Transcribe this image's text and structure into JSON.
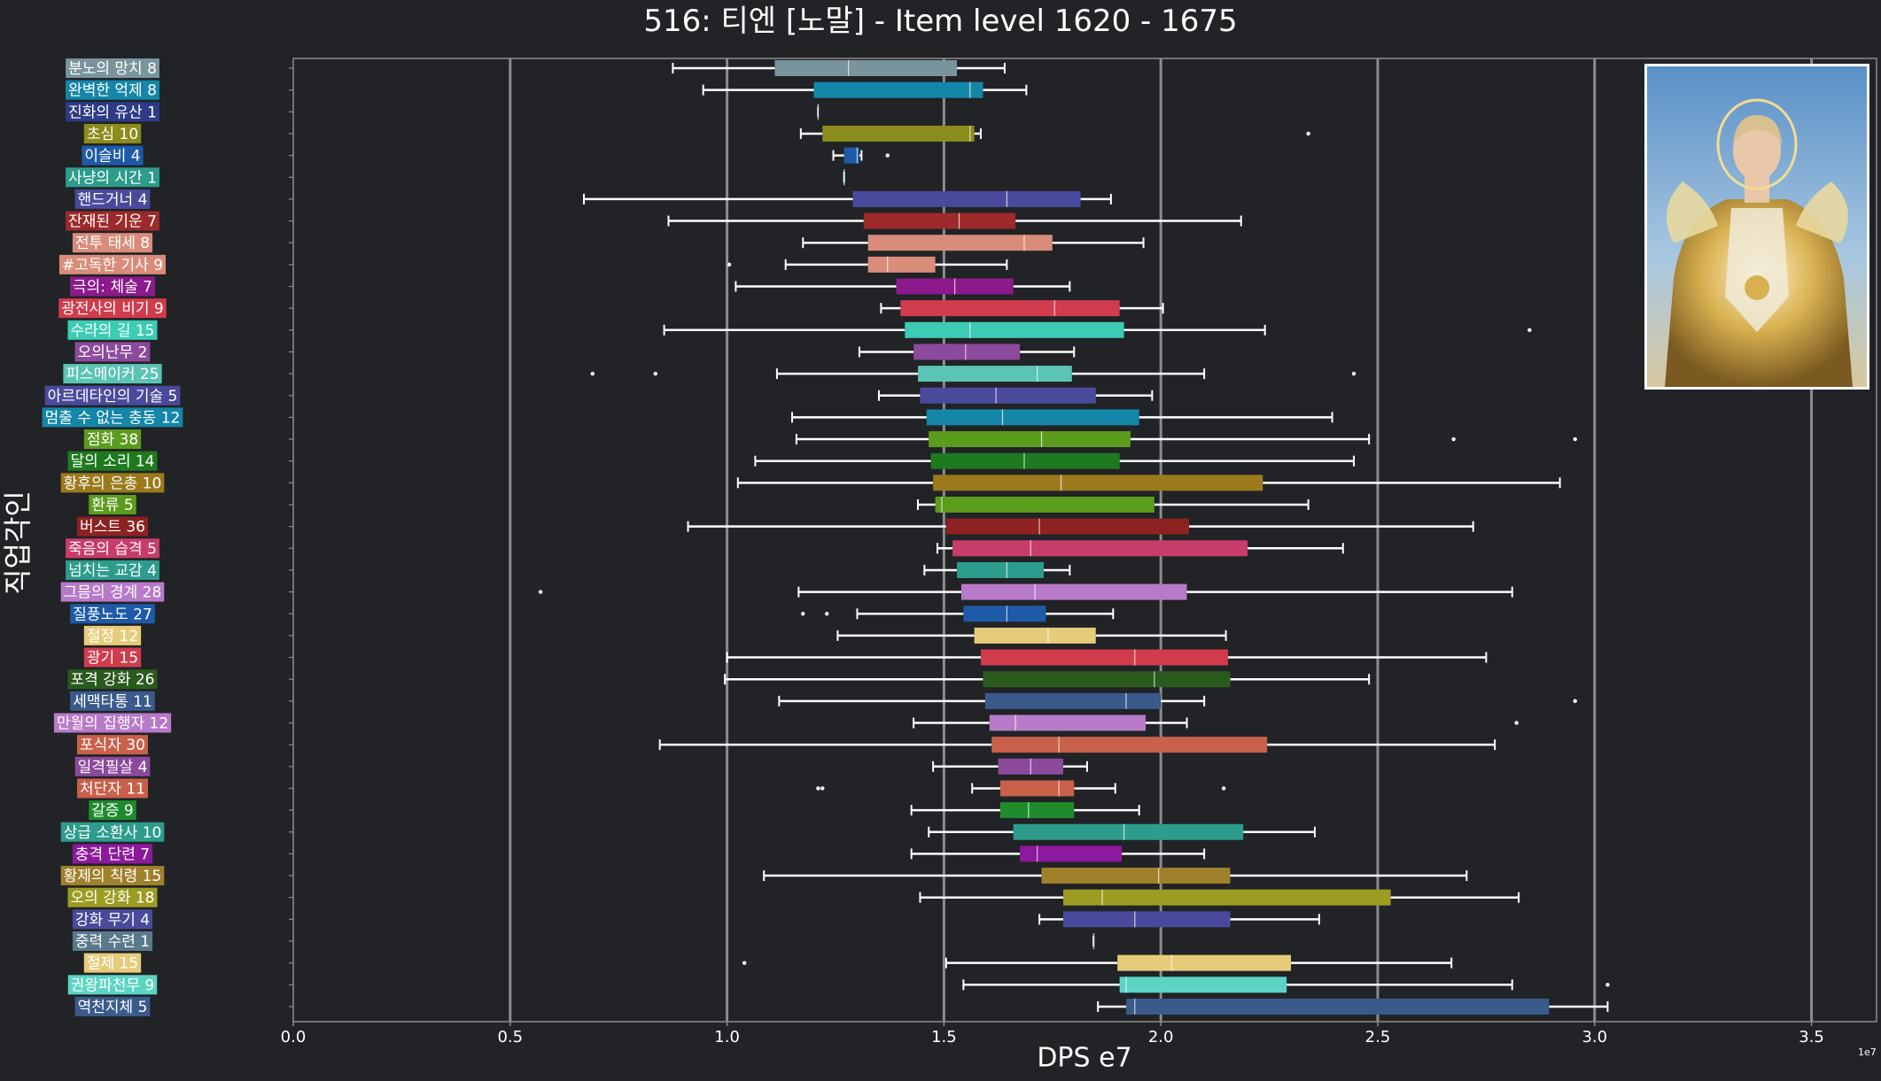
{
  "chart_data": {
    "type": "box",
    "title": "516: 티엔 [노말] - Item level 1620 - 1675",
    "xlabel": "DPS e7",
    "ylabel": "직업각인",
    "x_exponent_label": "1e7",
    "xlim": [
      0.0,
      3.65
    ],
    "xticks": [
      0.0,
      0.5,
      1.0,
      1.5,
      2.0,
      2.5,
      3.0,
      3.5
    ],
    "xtick_labels": [
      "0.0",
      "0.5",
      "1.0",
      "1.5",
      "2.0",
      "2.5",
      "3.0",
      "3.5"
    ],
    "grid": "vertical",
    "categories": [
      {
        "label": "분노의 망치 8",
        "color": "#7a949c",
        "whislo": 0.875,
        "q1": 1.11,
        "med": 1.28,
        "q3": 1.53,
        "whishi": 1.64,
        "fliers": []
      },
      {
        "label": "완벽한 억제 8",
        "color": "#1486a8",
        "whislo": 0.945,
        "q1": 1.2,
        "med": 1.56,
        "q3": 1.59,
        "whishi": 1.69,
        "fliers": []
      },
      {
        "label": "진화의 유산 1",
        "color": "#2e3b86",
        "whislo": 1.21,
        "q1": 1.21,
        "med": 1.21,
        "q3": 1.21,
        "whishi": 1.21,
        "fliers": []
      },
      {
        "label": "초심 10",
        "color": "#8c8c1c",
        "whislo": 1.17,
        "q1": 1.22,
        "med": 1.56,
        "q3": 1.57,
        "whishi": 1.585,
        "fliers": [
          2.34
        ]
      },
      {
        "label": "이슬비 4",
        "color": "#1e5aa8",
        "whislo": 1.245,
        "q1": 1.27,
        "med": 1.3,
        "q3": 1.305,
        "whishi": 1.31,
        "fliers": [
          1.37
        ]
      },
      {
        "label": "사냥의 시간 1",
        "color": "#2d9c8c",
        "whislo": 1.27,
        "q1": 1.27,
        "med": 1.27,
        "q3": 1.27,
        "whishi": 1.27,
        "fliers": []
      },
      {
        "label": "핸드거너 4",
        "color": "#4a4a9c",
        "whislo": 0.67,
        "q1": 1.29,
        "med": 1.645,
        "q3": 1.815,
        "whishi": 1.885,
        "fliers": []
      },
      {
        "label": "잔재된 기운 7",
        "color": "#9c2a2a",
        "whislo": 0.865,
        "q1": 1.315,
        "med": 1.535,
        "q3": 1.665,
        "whishi": 2.185,
        "fliers": []
      },
      {
        "label": "전투 태세 8",
        "color": "#d98c7a",
        "whislo": 1.175,
        "q1": 1.325,
        "med": 1.685,
        "q3": 1.75,
        "whishi": 1.96,
        "fliers": []
      },
      {
        "label": "#고독한 기사 9",
        "color": "#d98c7a",
        "whislo": 1.135,
        "q1": 1.325,
        "med": 1.37,
        "q3": 1.48,
        "whishi": 1.645,
        "fliers": [
          1.005
        ]
      },
      {
        "label": "극의: 체술 7",
        "color": "#8c1a8c",
        "whislo": 1.02,
        "q1": 1.39,
        "med": 1.525,
        "q3": 1.66,
        "whishi": 1.79,
        "fliers": []
      },
      {
        "label": "광전사의 비기 9",
        "color": "#d13c4c",
        "whislo": 1.355,
        "q1": 1.4,
        "med": 1.755,
        "q3": 1.905,
        "whishi": 2.005,
        "fliers": []
      },
      {
        "label": "수라의 길 15",
        "color": "#3cccb4",
        "whislo": 0.855,
        "q1": 1.41,
        "med": 1.56,
        "q3": 1.915,
        "whishi": 2.24,
        "fliers": [
          2.85
        ]
      },
      {
        "label": "오의난무 2",
        "color": "#8c4a9c",
        "whislo": 1.305,
        "q1": 1.43,
        "med": 1.55,
        "q3": 1.675,
        "whishi": 1.8,
        "fliers": []
      },
      {
        "label": "피스메이커 25",
        "color": "#5cc4b4",
        "whislo": 1.115,
        "q1": 1.44,
        "med": 1.715,
        "q3": 1.795,
        "whishi": 2.1,
        "fliers": [
          0.69,
          0.835,
          2.445
        ]
      },
      {
        "label": "아르데타인의 기술 5",
        "color": "#4a4a9c",
        "whislo": 1.35,
        "q1": 1.445,
        "med": 1.62,
        "q3": 1.85,
        "whishi": 1.98,
        "fliers": []
      },
      {
        "label": "멈출 수 없는 충동 12",
        "color": "#1486a8",
        "whislo": 1.15,
        "q1": 1.46,
        "med": 1.635,
        "q3": 1.95,
        "whishi": 2.395,
        "fliers": []
      },
      {
        "label": "점화 38",
        "color": "#5c9c1c",
        "whislo": 1.16,
        "q1": 1.465,
        "med": 1.725,
        "q3": 1.93,
        "whishi": 2.48,
        "fliers": [
          2.675,
          2.955
        ]
      },
      {
        "label": "달의 소리 14",
        "color": "#1e7a1e",
        "whislo": 1.065,
        "q1": 1.47,
        "med": 1.685,
        "q3": 1.905,
        "whishi": 2.445,
        "fliers": []
      },
      {
        "label": "황후의 은총 10",
        "color": "#9c7a1c",
        "whislo": 1.025,
        "q1": 1.475,
        "med": 1.77,
        "q3": 2.235,
        "whishi": 2.92,
        "fliers": []
      },
      {
        "label": "환류 5",
        "color": "#5c9c1c",
        "whislo": 1.44,
        "q1": 1.48,
        "med": 1.495,
        "q3": 1.985,
        "whishi": 2.34,
        "fliers": []
      },
      {
        "label": "버스트 36",
        "color": "#8c2222",
        "whislo": 0.91,
        "q1": 1.505,
        "med": 1.72,
        "q3": 2.065,
        "whishi": 2.72,
        "fliers": []
      },
      {
        "label": "죽음의 습격 5",
        "color": "#c83c6c",
        "whislo": 1.485,
        "q1": 1.52,
        "med": 1.7,
        "q3": 2.2,
        "whishi": 2.42,
        "fliers": []
      },
      {
        "label": "넘치는 교감 4",
        "color": "#2d9c8c",
        "whislo": 1.455,
        "q1": 1.53,
        "med": 1.645,
        "q3": 1.73,
        "whishi": 1.79,
        "fliers": []
      },
      {
        "label": "그믐의 경계 28",
        "color": "#b87ac8",
        "whislo": 1.165,
        "q1": 1.54,
        "med": 1.71,
        "q3": 2.06,
        "whishi": 2.81,
        "fliers": [
          0.57
        ]
      },
      {
        "label": "질풍노도 27",
        "color": "#1e5aa8",
        "whislo": 1.3,
        "q1": 1.545,
        "med": 1.645,
        "q3": 1.735,
        "whishi": 1.89,
        "fliers": [
          1.175,
          1.23
        ]
      },
      {
        "label": "절정 12",
        "color": "#e6cc7a",
        "whislo": 1.255,
        "q1": 1.57,
        "med": 1.74,
        "q3": 1.85,
        "whishi": 2.15,
        "fliers": []
      },
      {
        "label": "광기 15",
        "color": "#d13c4c",
        "whislo": 1.0,
        "q1": 1.585,
        "med": 1.94,
        "q3": 2.155,
        "whishi": 2.75,
        "fliers": []
      },
      {
        "label": "포격 강화 26",
        "color": "#2a5a1e",
        "whislo": 0.995,
        "q1": 1.59,
        "med": 1.985,
        "q3": 2.16,
        "whishi": 2.48,
        "fliers": []
      },
      {
        "label": "세맥타통 11",
        "color": "#3a5a8c",
        "whislo": 1.12,
        "q1": 1.595,
        "med": 1.92,
        "q3": 2.0,
        "whishi": 2.1,
        "fliers": [
          2.955
        ]
      },
      {
        "label": "만월의 집행자 12",
        "color": "#b87ac8",
        "whislo": 1.43,
        "q1": 1.605,
        "med": 1.665,
        "q3": 1.965,
        "whishi": 2.06,
        "fliers": [
          2.82
        ]
      },
      {
        "label": "포식자 30",
        "color": "#c8604a",
        "whislo": 0.845,
        "q1": 1.61,
        "med": 1.765,
        "q3": 2.245,
        "whishi": 2.77,
        "fliers": []
      },
      {
        "label": "일격필살 4",
        "color": "#8c4a9c",
        "whislo": 1.475,
        "q1": 1.625,
        "med": 1.7,
        "q3": 1.775,
        "whishi": 1.83,
        "fliers": []
      },
      {
        "label": "처단자 11",
        "color": "#c8604a",
        "whislo": 1.565,
        "q1": 1.63,
        "med": 1.765,
        "q3": 1.8,
        "whishi": 1.895,
        "fliers": [
          1.21,
          1.22,
          2.145
        ]
      },
      {
        "label": "갈증 9",
        "color": "#1e8c2d",
        "whislo": 1.425,
        "q1": 1.63,
        "med": 1.695,
        "q3": 1.8,
        "whishi": 1.95,
        "fliers": []
      },
      {
        "label": "상급 소환사 10",
        "color": "#2d9c8c",
        "whislo": 1.465,
        "q1": 1.66,
        "med": 1.915,
        "q3": 2.19,
        "whishi": 2.355,
        "fliers": []
      },
      {
        "label": "충격 단련 7",
        "color": "#8c1a9c",
        "whislo": 1.425,
        "q1": 1.675,
        "med": 1.715,
        "q3": 1.91,
        "whishi": 2.1,
        "fliers": []
      },
      {
        "label": "황제의 칙령 15",
        "color": "#a0802a",
        "whislo": 1.085,
        "q1": 1.725,
        "med": 1.995,
        "q3": 2.16,
        "whishi": 2.705,
        "fliers": []
      },
      {
        "label": "오의 강화 18",
        "color": "#9c9c22",
        "whislo": 1.445,
        "q1": 1.775,
        "med": 1.865,
        "q3": 2.53,
        "whishi": 2.825,
        "fliers": []
      },
      {
        "label": "강화 무기 4",
        "color": "#4a4a9c",
        "whislo": 1.72,
        "q1": 1.775,
        "med": 1.94,
        "q3": 2.16,
        "whishi": 2.365,
        "fliers": []
      },
      {
        "label": "중력 수련 1",
        "color": "#5a7a8c",
        "whislo": 1.845,
        "q1": 1.845,
        "med": 1.845,
        "q3": 1.845,
        "whishi": 1.845,
        "fliers": []
      },
      {
        "label": "절제 15",
        "color": "#e6cc7a",
        "whislo": 1.505,
        "q1": 1.9,
        "med": 2.025,
        "q3": 2.3,
        "whishi": 2.67,
        "fliers": [
          1.04
        ]
      },
      {
        "label": "권왕파천무 9",
        "color": "#5cd4c4",
        "whislo": 1.545,
        "q1": 1.905,
        "med": 1.92,
        "q3": 2.29,
        "whishi": 2.81,
        "fliers": [
          3.03
        ]
      },
      {
        "label": "역천지체 5",
        "color": "#3a5a8c",
        "whislo": 1.855,
        "q1": 1.92,
        "med": 1.94,
        "q3": 2.895,
        "whishi": 3.03,
        "fliers": []
      }
    ]
  },
  "colors": {
    "background": "#212326",
    "grid": "#8a8c8e",
    "text": "#ffffff",
    "whisker": "#ffffff"
  }
}
